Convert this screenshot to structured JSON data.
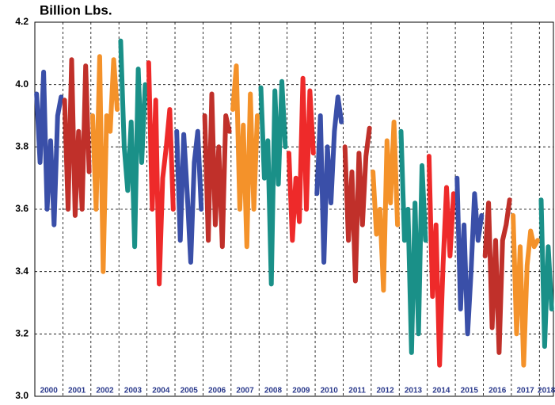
{
  "chart_data": {
    "type": "line",
    "title": "Billion Lbs.",
    "ylim": [
      3.0,
      4.2
    ],
    "yticks": [
      {
        "value": 3.0,
        "label": "3.0"
      },
      3.2,
      3.4,
      3.6,
      3.8,
      {
        "value": 4.0,
        "label": "4.0"
      },
      4.2
    ],
    "grid": true,
    "years": [
      {
        "label": "2000",
        "color": "#3a4fa8",
        "values": [
          3.97,
          3.75,
          4.04,
          3.6,
          3.82,
          3.55,
          3.9,
          3.96
        ]
      },
      {
        "label": "2001",
        "color": "#c0302a",
        "values": [
          3.95,
          3.6,
          4.08,
          3.58,
          3.85,
          3.6,
          4.06,
          3.72
        ]
      },
      {
        "label": "2002",
        "color": "#f4922a",
        "values": [
          3.9,
          3.6,
          4.09,
          3.4,
          3.9,
          3.85,
          4.08,
          3.92
        ]
      },
      {
        "label": "2003",
        "color": "#1a9088",
        "values": [
          4.14,
          3.8,
          3.66,
          3.88,
          3.48,
          4.05,
          3.75,
          4.0
        ]
      },
      {
        "label": "2004",
        "color": "#ee2a2a",
        "values": [
          4.07,
          3.6,
          3.95,
          3.36,
          3.7,
          3.8,
          3.92,
          3.6
        ]
      },
      {
        "label": "2005",
        "color": "#3a4fa8",
        "values": [
          3.85,
          3.5,
          3.84,
          3.65,
          3.43,
          3.75,
          3.85,
          3.6
        ]
      },
      {
        "label": "2006",
        "color": "#c0302a",
        "values": [
          3.9,
          3.5,
          3.97,
          3.55,
          3.8,
          3.48,
          3.9,
          3.85
        ]
      },
      {
        "label": "2007",
        "color": "#f4922a",
        "values": [
          3.92,
          4.06,
          3.6,
          3.87,
          3.48,
          3.97,
          3.6,
          3.9
        ]
      },
      {
        "label": "2008",
        "color": "#1a9088",
        "values": [
          3.99,
          3.7,
          3.82,
          3.36,
          3.98,
          3.68,
          4.01,
          3.8
        ]
      },
      {
        "label": "2009",
        "color": "#ee2a2a",
        "values": [
          3.78,
          3.5,
          3.7,
          3.56,
          4.02,
          3.6,
          3.98,
          3.78
        ]
      },
      {
        "label": "2010",
        "color": "#3a4fa8",
        "values": [
          3.65,
          3.9,
          3.43,
          3.8,
          3.62,
          3.85,
          3.96,
          3.88
        ]
      },
      {
        "label": "2011",
        "color": "#c0302a",
        "values": [
          3.8,
          3.5,
          3.72,
          3.37,
          3.78,
          3.55,
          3.77,
          3.86
        ]
      },
      {
        "label": "2012",
        "color": "#f4922a",
        "values": [
          3.72,
          3.52,
          3.6,
          3.34,
          3.82,
          3.62,
          3.88,
          3.55
        ]
      },
      {
        "label": "2013",
        "color": "#1a9088",
        "values": [
          3.85,
          3.5,
          3.6,
          3.14,
          3.62,
          3.2,
          3.74,
          3.5
        ]
      },
      {
        "label": "2014",
        "color": "#ee2a2a",
        "values": [
          3.77,
          3.32,
          3.55,
          3.1,
          3.42,
          3.67,
          3.45,
          3.65
        ]
      },
      {
        "label": "2015",
        "color": "#3a4fa8",
        "values": [
          3.7,
          3.28,
          3.55,
          3.2,
          3.4,
          3.65,
          3.5,
          3.58
        ]
      },
      {
        "label": "2016",
        "color": "#c0302a",
        "values": [
          3.45,
          3.62,
          3.22,
          3.5,
          3.14,
          3.5,
          3.55,
          3.63
        ]
      },
      {
        "label": "2017",
        "color": "#f4922a",
        "values": [
          3.58,
          3.2,
          3.48,
          3.1,
          3.42,
          3.53,
          3.48,
          3.5
        ]
      },
      {
        "label": "2018",
        "color": "#1a9088",
        "values": [
          3.63,
          3.16,
          3.48,
          3.28
        ]
      }
    ]
  }
}
